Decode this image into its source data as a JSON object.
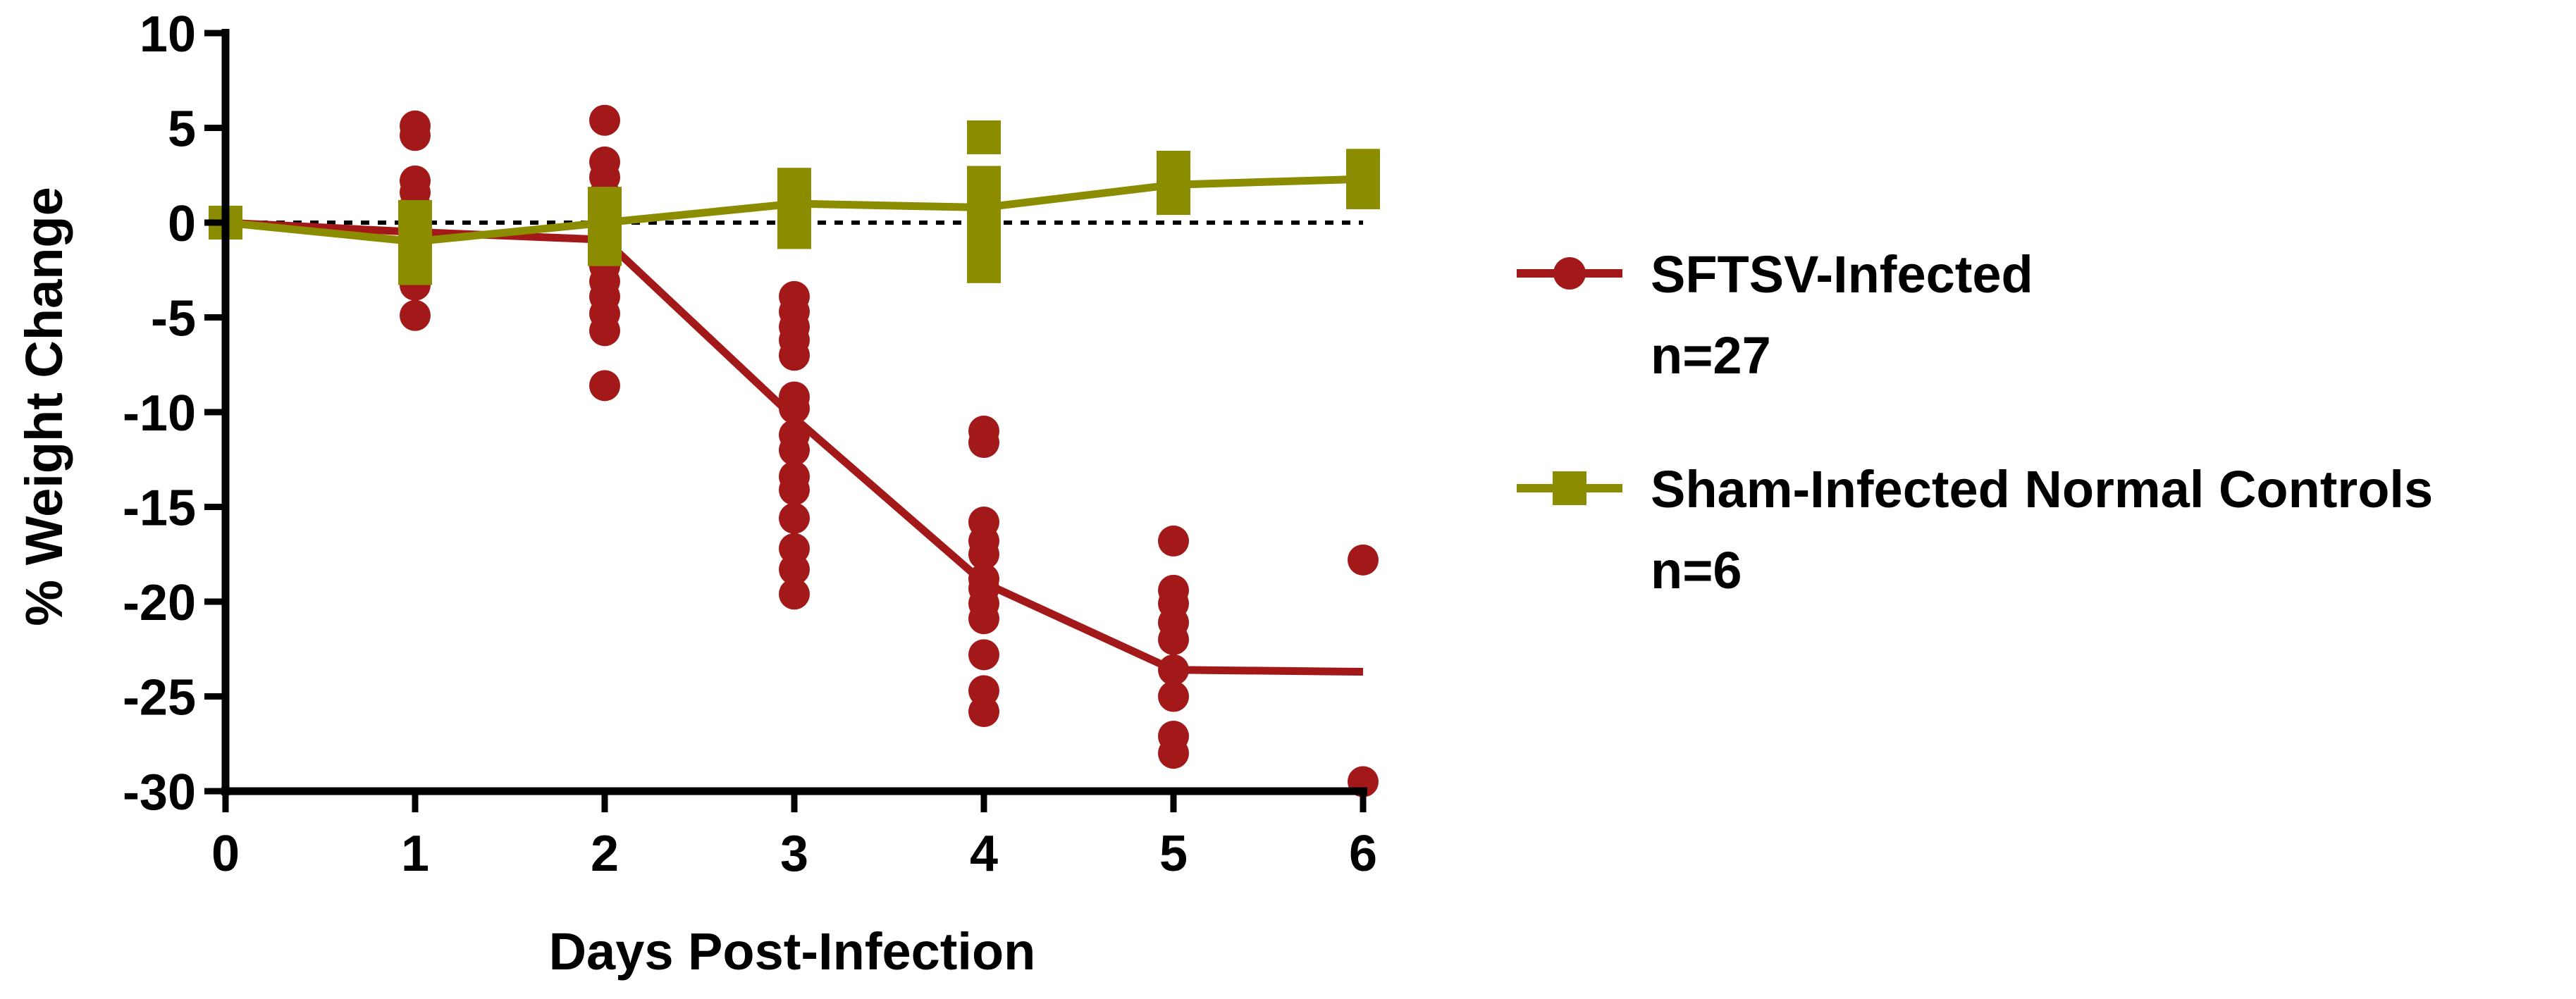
{
  "chart_data": {
    "type": "scatter",
    "title": "",
    "xlabel": "Days Post-Infection",
    "ylabel": "% Weight Change",
    "xlim": [
      0,
      6
    ],
    "ylim": [
      -30,
      10
    ],
    "x_ticks": [
      0,
      1,
      2,
      3,
      4,
      5,
      6
    ],
    "y_ticks": [
      10,
      5,
      0,
      -5,
      -10,
      -15,
      -20,
      -25,
      -30
    ],
    "reference_line": {
      "y": 0,
      "style": "dotted"
    },
    "grid": false,
    "legend_position": "right",
    "series": [
      {
        "name": "SFTSV-Infected",
        "n_label": "n=27",
        "marker": "circle",
        "color": "#a31919",
        "mean_line": [
          [
            0,
            0
          ],
          [
            1,
            -0.5
          ],
          [
            2,
            -0.9
          ],
          [
            3,
            -10.3
          ],
          [
            4,
            -19.0
          ],
          [
            5,
            -23.6
          ],
          [
            6,
            -23.7
          ]
        ],
        "points": [
          [
            0,
            0
          ],
          [
            1,
            5.1
          ],
          [
            1,
            4.6
          ],
          [
            1,
            2.2
          ],
          [
            1,
            1.6
          ],
          [
            1,
            0.9
          ],
          [
            1,
            0.2
          ],
          [
            1,
            -0.4
          ],
          [
            1,
            -1.1
          ],
          [
            1,
            -1.8
          ],
          [
            1,
            -2.6
          ],
          [
            1,
            -3.3
          ],
          [
            1,
            -4.9
          ],
          [
            2,
            5.4
          ],
          [
            2,
            3.2
          ],
          [
            2,
            2.4
          ],
          [
            2,
            1.5
          ],
          [
            2,
            0.5
          ],
          [
            2,
            -0.4
          ],
          [
            2,
            -1.4
          ],
          [
            2,
            -2.3
          ],
          [
            2,
            -3.1
          ],
          [
            2,
            -3.9
          ],
          [
            2,
            -4.8
          ],
          [
            2,
            -5.7
          ],
          [
            2,
            -8.6
          ],
          [
            3,
            -3.9
          ],
          [
            3,
            -4.7
          ],
          [
            3,
            -5.5
          ],
          [
            3,
            -6.2
          ],
          [
            3,
            -7.0
          ],
          [
            3,
            -9.2
          ],
          [
            3,
            -9.8
          ],
          [
            3,
            -11.2
          ],
          [
            3,
            -12.0
          ],
          [
            3,
            -13.4
          ],
          [
            3,
            -14.1
          ],
          [
            3,
            -15.6
          ],
          [
            3,
            -17.2
          ],
          [
            3,
            -18.3
          ],
          [
            3,
            -19.6
          ],
          [
            4,
            -11.0
          ],
          [
            4,
            -11.6
          ],
          [
            4,
            -15.8
          ],
          [
            4,
            -16.8
          ],
          [
            4,
            -17.5
          ],
          [
            4,
            -18.8
          ],
          [
            4,
            -19.3
          ],
          [
            4,
            -20.1
          ],
          [
            4,
            -20.9
          ],
          [
            4,
            -22.8
          ],
          [
            4,
            -24.7
          ],
          [
            4,
            -25.8
          ],
          [
            5,
            -16.8
          ],
          [
            5,
            -19.4
          ],
          [
            5,
            -20.1
          ],
          [
            5,
            -21.1
          ],
          [
            5,
            -22.0
          ],
          [
            5,
            -23.6
          ],
          [
            5,
            -25.0
          ],
          [
            5,
            -27.1
          ],
          [
            5,
            -28.0
          ],
          [
            6,
            -17.8
          ],
          [
            6,
            -29.5
          ]
        ]
      },
      {
        "name": "Sham-Infected Normal Controls",
        "n_label": "n=6",
        "marker": "square",
        "color": "#8c8c00",
        "mean_line": [
          [
            0,
            0
          ],
          [
            1,
            -1.0
          ],
          [
            2,
            0.0
          ],
          [
            3,
            1.0
          ],
          [
            4,
            0.8
          ],
          [
            5,
            2.0
          ],
          [
            6,
            2.3
          ]
        ],
        "points": [
          [
            0,
            0
          ],
          [
            1,
            0.3
          ],
          [
            1,
            -0.4
          ],
          [
            1,
            -1.0
          ],
          [
            1,
            -1.6
          ],
          [
            1,
            -2.4
          ],
          [
            2,
            1.0
          ],
          [
            2,
            0.5
          ],
          [
            2,
            -0.2
          ],
          [
            2,
            -0.8
          ],
          [
            2,
            -1.4
          ],
          [
            3,
            2.0
          ],
          [
            3,
            1.4
          ],
          [
            3,
            0.8
          ],
          [
            3,
            0.1
          ],
          [
            3,
            -0.5
          ],
          [
            4,
            4.5
          ],
          [
            4,
            2.1
          ],
          [
            4,
            1.0
          ],
          [
            4,
            -0.5
          ],
          [
            4,
            -1.8
          ],
          [
            4,
            -2.3
          ],
          [
            5,
            2.9
          ],
          [
            5,
            2.3
          ],
          [
            5,
            1.8
          ],
          [
            5,
            1.3
          ],
          [
            6,
            3.0
          ],
          [
            6,
            2.5
          ],
          [
            6,
            2.0
          ],
          [
            6,
            1.6
          ]
        ]
      }
    ]
  }
}
